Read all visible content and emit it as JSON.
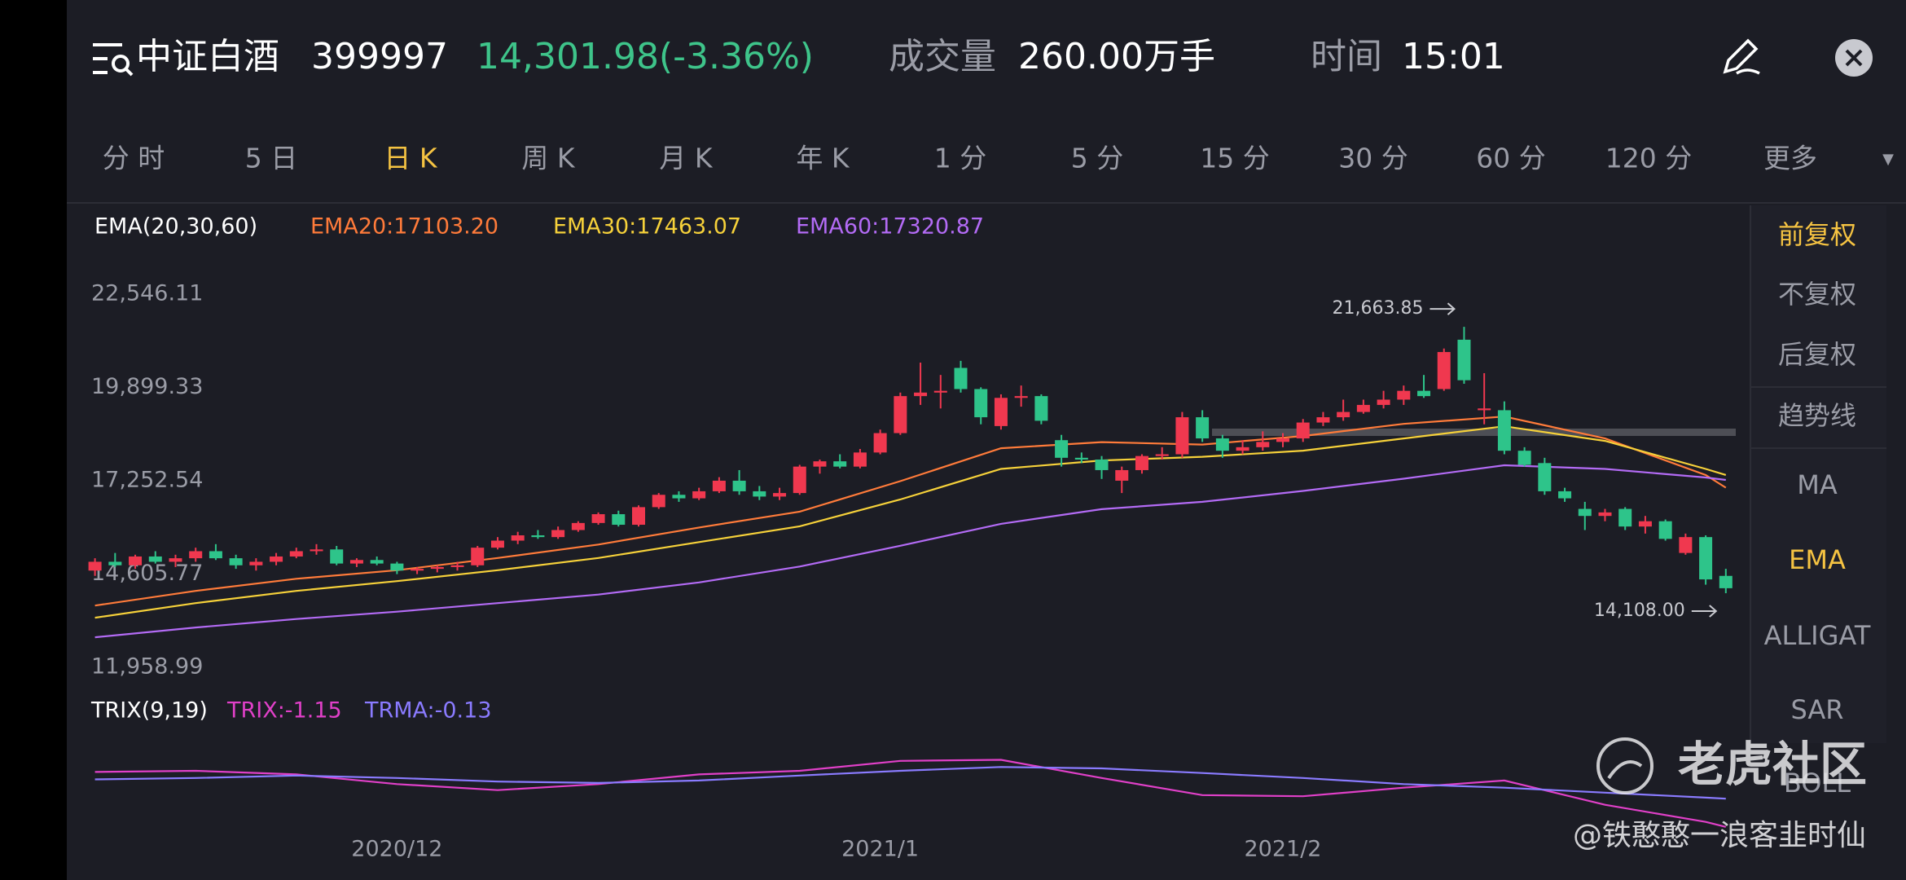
{
  "header": {
    "name": "中证白酒",
    "code": "399997",
    "price": "14,301.98(-3.36%)",
    "volume_label": "成交量",
    "volume": "260.00万手",
    "time_label": "时间",
    "time": "15:01"
  },
  "tabs": [
    {
      "label": "分 时",
      "active": false
    },
    {
      "label": "5 日",
      "active": false
    },
    {
      "label": "日 K",
      "active": true
    },
    {
      "label": "周 K",
      "active": false
    },
    {
      "label": "月 K",
      "active": false
    },
    {
      "label": "年 K",
      "active": false
    },
    {
      "label": "1 分",
      "active": false
    },
    {
      "label": "5 分",
      "active": false
    },
    {
      "label": "15 分",
      "active": false
    },
    {
      "label": "30 分",
      "active": false
    },
    {
      "label": "60 分",
      "active": false
    },
    {
      "label": "120 分",
      "active": false
    },
    {
      "label": "更多",
      "active": false
    }
  ],
  "side_panel": [
    {
      "label": "前复权",
      "active": true
    },
    {
      "label": "不复权",
      "active": false
    },
    {
      "label": "后复权",
      "active": false
    },
    {
      "label": "趋势线",
      "active": false
    },
    {
      "label": "MA",
      "active": false
    },
    {
      "label": "EMA",
      "active": true
    },
    {
      "label": "ALLIGAT",
      "active": false
    },
    {
      "label": "SAR",
      "active": false
    },
    {
      "label": "BOLL",
      "active": false
    }
  ],
  "watermark": {
    "brand": "老虎社区",
    "user": "@铁憨憨一浪客韭时仙"
  },
  "chart_data": [
    {
      "type": "candlestick",
      "indicator": "EMA(20,30,60)",
      "up_color": "#f0384f",
      "down_color": "#2ec48a",
      "xlim": [
        -1.4,
        82.1
      ],
      "xticks": [
        {
          "value": 15,
          "label": "2020/12"
        },
        {
          "value": 39,
          "label": "2021/1"
        },
        {
          "value": 59,
          "label": "2021/2"
        }
      ],
      "ylim": [
        11958.99,
        22546.11
      ],
      "yticks": [
        {
          "value": 22546.11,
          "label": "22,546.11"
        },
        {
          "value": 19899.33,
          "label": "19,899.33"
        },
        {
          "value": 17252.54,
          "label": "17,252.54"
        },
        {
          "value": 14605.77,
          "label": "14,605.77"
        },
        {
          "value": 11958.99,
          "label": "11,958.99"
        }
      ],
      "max_label": "21,663.85",
      "min_label": "14,108.00",
      "ohlc": [
        [
          14750,
          15100,
          14600,
          15000
        ],
        [
          15000,
          15250,
          14850,
          14900
        ],
        [
          14900,
          15200,
          14800,
          15150
        ],
        [
          15150,
          15300,
          14950,
          15000
        ],
        [
          15000,
          15200,
          14850,
          15100
        ],
        [
          15100,
          15400,
          15000,
          15300
        ],
        [
          15300,
          15500,
          15050,
          15100
        ],
        [
          15100,
          15200,
          14800,
          14900
        ],
        [
          14900,
          15100,
          14750,
          15000
        ],
        [
          15000,
          15250,
          14900,
          15150
        ],
        [
          15150,
          15400,
          15100,
          15300
        ],
        [
          15300,
          15500,
          15200,
          15350
        ],
        [
          15350,
          15450,
          14900,
          14950
        ],
        [
          14950,
          15100,
          14850,
          15050
        ],
        [
          15050,
          15150,
          14900,
          14950
        ],
        [
          14950,
          15000,
          14650,
          14750
        ],
        [
          14750,
          14850,
          14650,
          14800
        ],
        [
          14800,
          14900,
          14700,
          14850
        ],
        [
          14850,
          15000,
          14750,
          14900
        ],
        [
          14900,
          15450,
          14850,
          15400
        ],
        [
          15400,
          15700,
          15350,
          15600
        ],
        [
          15600,
          15850,
          15500,
          15750
        ],
        [
          15750,
          15900,
          15650,
          15700
        ],
        [
          15700,
          16000,
          15650,
          15900
        ],
        [
          15900,
          16150,
          15850,
          16100
        ],
        [
          16100,
          16400,
          16050,
          16350
        ],
        [
          16350,
          16450,
          16000,
          16050
        ],
        [
          16050,
          16600,
          16000,
          16550
        ],
        [
          16550,
          16950,
          16500,
          16900
        ],
        [
          16900,
          17000,
          16700,
          16800
        ],
        [
          16800,
          17100,
          16750,
          17000
        ],
        [
          17000,
          17400,
          16950,
          17300
        ],
        [
          17300,
          17600,
          16900,
          17000
        ],
        [
          17000,
          17150,
          16750,
          16850
        ],
        [
          16850,
          17100,
          16750,
          16950
        ],
        [
          16950,
          17750,
          16900,
          17700
        ],
        [
          17700,
          17900,
          17500,
          17850
        ],
        [
          17850,
          18050,
          17650,
          17700
        ],
        [
          17700,
          18200,
          17650,
          18100
        ],
        [
          18100,
          18750,
          18050,
          18650
        ],
        [
          18650,
          19800,
          18600,
          19700
        ],
        [
          19700,
          20650,
          19450,
          19800
        ],
        [
          19800,
          20300,
          19350,
          19850
        ],
        [
          20500,
          20700,
          19800,
          19900
        ],
        [
          19900,
          19950,
          18900,
          19100
        ],
        [
          18850,
          19750,
          18750,
          19650
        ],
        [
          19650,
          20000,
          19400,
          19700
        ],
        [
          19700,
          19750,
          18900,
          19000
        ],
        [
          18450,
          18600,
          17700,
          17950
        ],
        [
          17950,
          18100,
          17800,
          17900
        ],
        [
          17900,
          18000,
          17350,
          17600
        ],
        [
          17300,
          17700,
          16950,
          17600
        ],
        [
          17600,
          18050,
          17500,
          18000
        ],
        [
          18000,
          18250,
          17900,
          18050
        ],
        [
          18050,
          19250,
          17950,
          19100
        ],
        [
          19100,
          19300,
          18400,
          18500
        ],
        [
          18500,
          18600,
          17950,
          18150
        ],
        [
          18150,
          18450,
          18050,
          18250
        ],
        [
          18250,
          18700,
          18150,
          18400
        ],
        [
          18400,
          18650,
          18250,
          18500
        ],
        [
          18500,
          19050,
          18400,
          18950
        ],
        [
          18950,
          19250,
          18850,
          19100
        ],
        [
          19100,
          19600,
          19000,
          19250
        ],
        [
          19250,
          19600,
          19200,
          19450
        ],
        [
          19450,
          19850,
          19350,
          19600
        ],
        [
          19600,
          20000,
          19450,
          19850
        ],
        [
          19850,
          20300,
          19650,
          19700
        ],
        [
          19900,
          21050,
          19850,
          20950
        ],
        [
          21300,
          21663.85,
          20050,
          20150
        ],
        [
          19300,
          20350,
          18900,
          19350
        ],
        [
          19300,
          19550,
          18050,
          18150
        ],
        [
          18150,
          18250,
          17700,
          17750
        ],
        [
          17800,
          17950,
          16900,
          17000
        ],
        [
          17000,
          17100,
          16700,
          16800
        ],
        [
          16500,
          16700,
          15900,
          16300
        ],
        [
          16300,
          16500,
          16150,
          16400
        ],
        [
          16500,
          16550,
          15900,
          16000
        ],
        [
          16000,
          16300,
          15800,
          16150
        ],
        [
          16150,
          16200,
          15600,
          15650
        ],
        [
          15250,
          15800,
          15200,
          15700
        ],
        [
          15700,
          15750,
          14350,
          14500
        ],
        [
          14600,
          14800,
          14108,
          14250
        ]
      ],
      "series": [
        {
          "name": "EMA20:17103.20",
          "color": "#ff7b3a",
          "x": [
            0,
            5,
            10,
            15,
            20,
            25,
            30,
            35,
            40,
            45,
            50,
            55,
            60,
            65,
            70,
            75,
            80,
            81
          ],
          "values": [
            13758,
            14173,
            14519,
            14761,
            15107,
            15488,
            15972,
            16422,
            17287,
            18221,
            18394,
            18325,
            18567,
            18913,
            19121,
            18498,
            17460,
            17103.2
          ]
        },
        {
          "name": "EMA30:17463.07",
          "color": "#f6d13a",
          "x": [
            0,
            5,
            10,
            15,
            20,
            25,
            30,
            35,
            40,
            45,
            50,
            55,
            60,
            65,
            70,
            75,
            80,
            81
          ],
          "values": [
            13412,
            13827,
            14173,
            14450,
            14761,
            15107,
            15557,
            16007,
            16768,
            17633,
            17875,
            17979,
            18152,
            18498,
            18844,
            18429,
            17633,
            17463.07
          ]
        },
        {
          "name": "EMA60:17320.87",
          "color": "#b36bf5",
          "x": [
            0,
            5,
            10,
            15,
            20,
            25,
            30,
            35,
            40,
            45,
            50,
            55,
            60,
            65,
            70,
            75,
            80,
            81
          ],
          "values": [
            12858,
            13135,
            13377,
            13585,
            13827,
            14069,
            14415,
            14865,
            15453,
            16076,
            16491,
            16699,
            17010,
            17356,
            17737,
            17633,
            17391,
            17320.87
          ]
        }
      ]
    },
    {
      "type": "line",
      "indicator": "TRIX(9,19)",
      "xlim": [
        -1.4,
        82.1
      ],
      "ylim": [
        -1.6,
        1.5
      ],
      "series": [
        {
          "name": "TRIX:-1.15",
          "color": "#e040c8",
          "x": [
            0,
            5,
            10,
            15,
            20,
            25,
            30,
            35,
            40,
            45,
            50,
            55,
            60,
            65,
            70,
            75,
            80,
            81
          ],
          "values": [
            0.84,
            0.88,
            0.75,
            0.4,
            0.18,
            0.4,
            0.75,
            0.88,
            1.24,
            1.28,
            0.62,
            0,
            -0.04,
            0.27,
            0.53,
            -0.35,
            -0.97,
            -1.15
          ]
        },
        {
          "name": "TRMA:-0.13",
          "color": "#8a7bff",
          "x": [
            0,
            5,
            10,
            15,
            20,
            25,
            30,
            35,
            40,
            45,
            50,
            55,
            60,
            65,
            70,
            75,
            80,
            81
          ],
          "values": [
            0.57,
            0.62,
            0.71,
            0.62,
            0.49,
            0.44,
            0.53,
            0.71,
            0.88,
            1.02,
            0.97,
            0.8,
            0.62,
            0.4,
            0.27,
            0.09,
            -0.09,
            -0.13
          ]
        }
      ]
    }
  ]
}
